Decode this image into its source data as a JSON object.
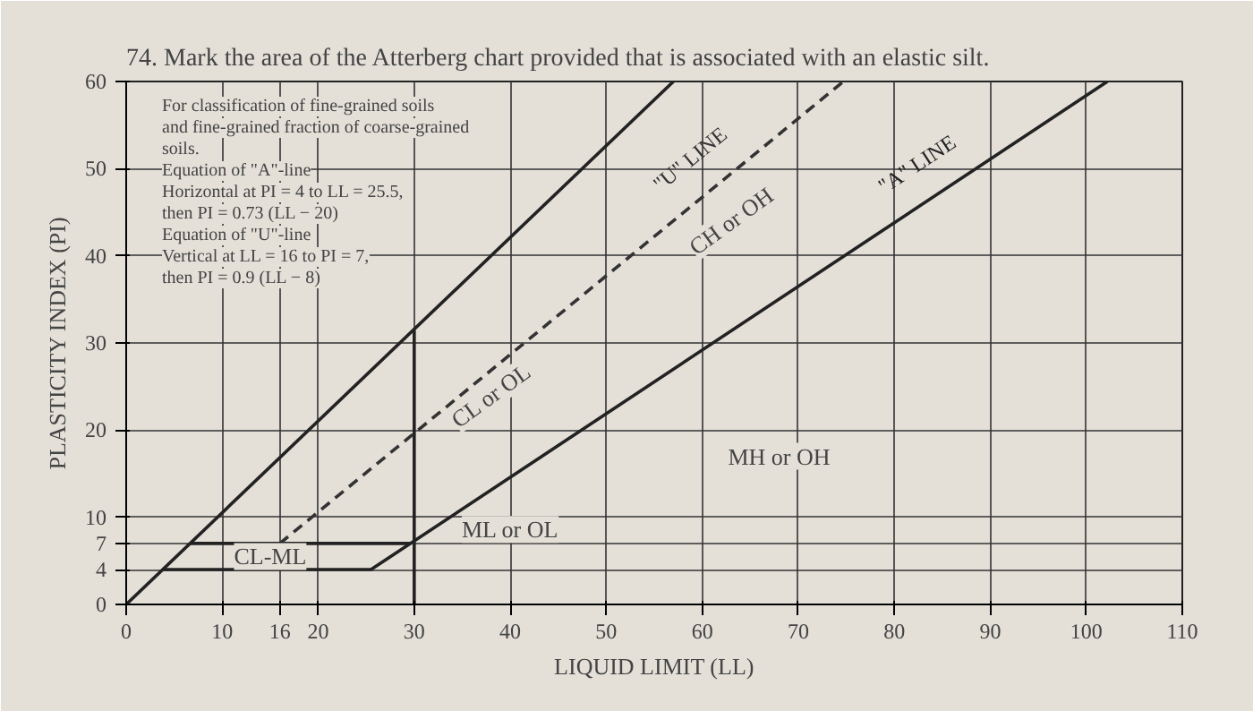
{
  "chart_data": {
    "type": "line",
    "title": "74.  Mark the area of the Atterberg chart provided that is associated with an elastic silt.",
    "xlabel": "LIQUID LIMIT (LL)",
    "ylabel": "PLASTICITY INDEX (PI)",
    "xlim": [
      0,
      110
    ],
    "ylim": [
      0,
      60
    ],
    "xticks": [
      0,
      10,
      16,
      20,
      30,
      40,
      50,
      60,
      70,
      80,
      90,
      100,
      110
    ],
    "yticks": [
      0,
      4,
      7,
      10,
      20,
      30,
      40,
      50,
      60
    ],
    "grid": true,
    "marker": "none",
    "line_style": "solid",
    "series": [
      {
        "color": "#222222",
        "x": [
          0,
          57
        ],
        "values": [
          0,
          60
        ]
      },
      {
        "name": "\"U\" LINE",
        "color": "#333333",
        "line_style": "dashed",
        "x": [
          16,
          74.7
        ],
        "values": [
          7,
          60
        ]
      },
      {
        "name": "\"A\" LINE",
        "color": "#222222",
        "x": [
          3.8,
          25.5,
          102.2
        ],
        "values": [
          4,
          4,
          60
        ]
      },
      {
        "color": "#222222",
        "x": [
          6.7,
          29.6
        ],
        "values": [
          7,
          7
        ]
      },
      {
        "color": "#222222",
        "x": [
          30,
          30
        ],
        "values": [
          0,
          31.5
        ]
      }
    ],
    "annotations": [
      "For classification of fine-grained soils",
      "and fine-grained fraction of coarse-grained",
      "soils.",
      "Equation of \"A\"-line",
      "Horizontal at PI = 4 to LL = 25.5,",
      "then PI = 0.73 (LL − 20)",
      "Equation of \"U\"-line",
      "Vertical at LL = 16 to PI = 7,",
      "then PI = 0.9 (LL − 8)",
      "CL-ML",
      "ML or OL",
      "CL or OL",
      "MH or OH",
      "CH or OH"
    ]
  }
}
